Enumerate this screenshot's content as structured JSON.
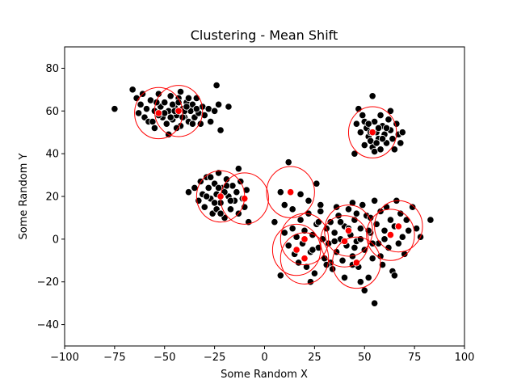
{
  "chart_data": {
    "type": "scatter",
    "title": "Clustering - Mean Shift",
    "xlabel": "Some Random X",
    "ylabel": "Some Random Y",
    "xlim": [
      -100,
      100
    ],
    "ylim": [
      -50,
      90
    ],
    "xticks": [
      -100,
      -75,
      -50,
      -25,
      0,
      25,
      50,
      75,
      100
    ],
    "yticks": [
      -40,
      -20,
      0,
      20,
      40,
      60,
      80
    ],
    "xtick_labels": [
      "−100",
      "−75",
      "−50",
      "−25",
      "0",
      "25",
      "50",
      "75",
      "100"
    ],
    "ytick_labels": [
      "−40",
      "−20",
      "0",
      "20",
      "40",
      "60",
      "80"
    ],
    "grid": false,
    "colors": {
      "points": "#000000",
      "point_edge": "#ffffff",
      "centers": "#ff0000",
      "circles": "#ff0000"
    },
    "circle_radius": 12,
    "points": [
      [
        -75,
        61
      ],
      [
        -66,
        70
      ],
      [
        -64,
        66
      ],
      [
        -62,
        63
      ],
      [
        -60,
        57
      ],
      [
        -58,
        55
      ],
      [
        -57,
        65
      ],
      [
        -55,
        60
      ],
      [
        -55,
        52
      ],
      [
        -53,
        68
      ],
      [
        -52,
        62
      ],
      [
        -51,
        57
      ],
      [
        -50,
        64
      ],
      [
        -49,
        54
      ],
      [
        -48,
        60
      ],
      [
        -47,
        67
      ],
      [
        -46,
        56
      ],
      [
        -45,
        62
      ],
      [
        -44,
        58
      ],
      [
        -43,
        66
      ],
      [
        -42,
        53
      ],
      [
        -41,
        61
      ],
      [
        -40,
        57
      ],
      [
        -39,
        64
      ],
      [
        -38,
        55
      ],
      [
        -37,
        60
      ],
      [
        -36,
        63
      ],
      [
        -35,
        57
      ],
      [
        -34,
        66
      ],
      [
        -33,
        59
      ],
      [
        -32,
        54
      ],
      [
        -31,
        62
      ],
      [
        -30,
        58
      ],
      [
        -28,
        61
      ],
      [
        -27,
        55
      ],
      [
        -25,
        60
      ],
      [
        -24,
        72
      ],
      [
        -23,
        63
      ],
      [
        -22,
        51
      ],
      [
        -18,
        62
      ],
      [
        -63,
        59
      ],
      [
        -61,
        68
      ],
      [
        -59,
        61
      ],
      [
        -56,
        55
      ],
      [
        -54,
        64
      ],
      [
        -48,
        49
      ],
      [
        -46,
        63
      ],
      [
        -44,
        52
      ],
      [
        -42,
        69
      ],
      [
        -40,
        60
      ],
      [
        -38,
        66
      ],
      [
        -36,
        54
      ],
      [
        -34,
        61
      ],
      [
        -50,
        59
      ],
      [
        -45,
        60
      ],
      [
        -41,
        57
      ],
      [
        -39,
        62
      ],
      [
        -47,
        57
      ],
      [
        -43,
        64
      ],
      [
        -53,
        58
      ],
      [
        54,
        67
      ],
      [
        47,
        61
      ],
      [
        49,
        58
      ],
      [
        50,
        55
      ],
      [
        51,
        52
      ],
      [
        52,
        48
      ],
      [
        53,
        46
      ],
      [
        54,
        43
      ],
      [
        55,
        55
      ],
      [
        56,
        50
      ],
      [
        57,
        47
      ],
      [
        58,
        58
      ],
      [
        59,
        53
      ],
      [
        60,
        49
      ],
      [
        61,
        45
      ],
      [
        62,
        56
      ],
      [
        63,
        51
      ],
      [
        64,
        47
      ],
      [
        65,
        42
      ],
      [
        66,
        54
      ],
      [
        67,
        49
      ],
      [
        68,
        45
      ],
      [
        69,
        50
      ],
      [
        48,
        50
      ],
      [
        46,
        54
      ],
      [
        45,
        40
      ],
      [
        50,
        44
      ],
      [
        55,
        41
      ],
      [
        58,
        42
      ],
      [
        63,
        60
      ],
      [
        52,
        54
      ],
      [
        57,
        52
      ],
      [
        61,
        52
      ],
      [
        53,
        50
      ],
      [
        59,
        47
      ],
      [
        56,
        45
      ],
      [
        -38,
        22
      ],
      [
        -35,
        24
      ],
      [
        -33,
        18
      ],
      [
        -32,
        27
      ],
      [
        -31,
        21
      ],
      [
        -30,
        15
      ],
      [
        -29,
        29
      ],
      [
        -28,
        24
      ],
      [
        -27,
        19
      ],
      [
        -26,
        12
      ],
      [
        -25,
        26
      ],
      [
        -24,
        21
      ],
      [
        -23,
        31
      ],
      [
        -22,
        17
      ],
      [
        -21,
        24
      ],
      [
        -20,
        10
      ],
      [
        -19,
        28
      ],
      [
        -18,
        20
      ],
      [
        -17,
        14
      ],
      [
        -16,
        25
      ],
      [
        -15,
        18
      ],
      [
        -14,
        22
      ],
      [
        -13,
        12
      ],
      [
        -12,
        27
      ],
      [
        -11,
        19
      ],
      [
        -10,
        15
      ],
      [
        -9,
        23
      ],
      [
        -8,
        8
      ],
      [
        -24,
        14
      ],
      [
        -27,
        29
      ],
      [
        -22,
        12
      ],
      [
        -13,
        33
      ],
      [
        -29,
        20
      ],
      [
        -20,
        22
      ],
      [
        -17,
        18
      ],
      [
        -25,
        17
      ],
      [
        -19,
        25
      ],
      [
        -23,
        24
      ],
      [
        12,
        36
      ],
      [
        8,
        22
      ],
      [
        14,
        14
      ],
      [
        18,
        21
      ],
      [
        22,
        18
      ],
      [
        26,
        26
      ],
      [
        28,
        16
      ],
      [
        5,
        8
      ],
      [
        10,
        16
      ],
      [
        10,
        3
      ],
      [
        12,
        -3
      ],
      [
        14,
        5
      ],
      [
        15,
        -7
      ],
      [
        16,
        1
      ],
      [
        17,
        -11
      ],
      [
        18,
        9
      ],
      [
        19,
        -2
      ],
      [
        20,
        4
      ],
      [
        21,
        -13
      ],
      [
        22,
        12
      ],
      [
        23,
        -6
      ],
      [
        24,
        2
      ],
      [
        25,
        -16
      ],
      [
        26,
        7
      ],
      [
        27,
        -4
      ],
      [
        28,
        13
      ],
      [
        29,
        0
      ],
      [
        30,
        -9
      ],
      [
        31,
        5
      ],
      [
        32,
        -2
      ],
      [
        33,
        8
      ],
      [
        34,
        -14
      ],
      [
        35,
        3
      ],
      [
        36,
        -6
      ],
      [
        37,
        11
      ],
      [
        38,
        0
      ],
      [
        39,
        -10
      ],
      [
        40,
        6
      ],
      [
        41,
        -3
      ],
      [
        42,
        14
      ],
      [
        43,
        2
      ],
      [
        44,
        -8
      ],
      [
        45,
        9
      ],
      [
        46,
        -1
      ],
      [
        47,
        -13
      ],
      [
        48,
        5
      ],
      [
        49,
        16
      ],
      [
        50,
        -5
      ],
      [
        51,
        11
      ],
      [
        52,
        -18
      ],
      [
        53,
        3
      ],
      [
        54,
        -9
      ],
      [
        55,
        18
      ],
      [
        56,
        7
      ],
      [
        57,
        -2
      ],
      [
        58,
        13
      ],
      [
        59,
        -12
      ],
      [
        60,
        4
      ],
      [
        61,
        15
      ],
      [
        62,
        -4
      ],
      [
        63,
        9
      ],
      [
        64,
        -15
      ],
      [
        65,
        6
      ],
      [
        66,
        18
      ],
      [
        67,
        -2
      ],
      [
        68,
        12
      ],
      [
        69,
        1
      ],
      [
        70,
        -7
      ],
      [
        71,
        9
      ],
      [
        72,
        4
      ],
      [
        74,
        15
      ],
      [
        76,
        5
      ],
      [
        78,
        1
      ],
      [
        83,
        9
      ],
      [
        65,
        -17
      ],
      [
        55,
        -30
      ],
      [
        8,
        -17
      ],
      [
        23,
        -20
      ],
      [
        50,
        -24
      ],
      [
        44,
        17
      ],
      [
        40,
        -18
      ],
      [
        48,
        -20
      ],
      [
        33,
        -11
      ],
      [
        36,
        15
      ],
      [
        53,
        10
      ],
      [
        46,
        12
      ],
      [
        58,
        -8
      ],
      [
        27,
        8
      ],
      [
        31,
        -12
      ],
      [
        42,
        5
      ],
      [
        38,
        8
      ],
      [
        52,
        4
      ],
      [
        45,
        -4
      ],
      [
        35,
        -1
      ],
      [
        60,
        0
      ],
      [
        48,
        0
      ],
      [
        44,
        -12
      ],
      [
        54,
        -2
      ],
      [
        24,
        -5
      ]
    ],
    "centers": [
      [
        -53,
        59
      ],
      [
        -43,
        60
      ],
      [
        54,
        50
      ],
      [
        -22,
        20
      ],
      [
        -10,
        19
      ],
      [
        13,
        22
      ],
      [
        20,
        0
      ],
      [
        16,
        -5
      ],
      [
        20,
        -9
      ],
      [
        40,
        -1
      ],
      [
        42,
        4
      ],
      [
        46,
        -11
      ],
      [
        63,
        2
      ],
      [
        67,
        6
      ]
    ]
  }
}
